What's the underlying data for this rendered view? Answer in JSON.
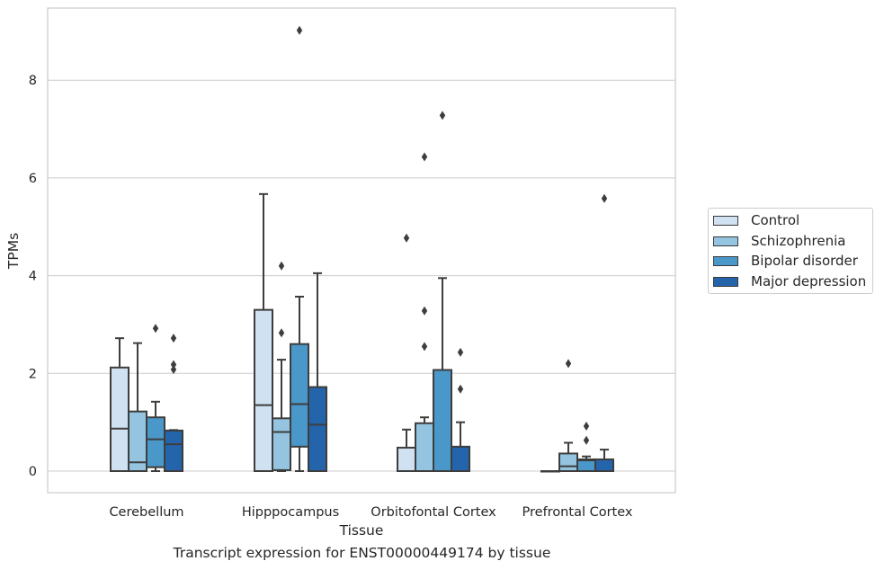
{
  "caption": "Transcript expression for ENST00000449174 by tissue",
  "colors": {
    "Control": "#d0e1f2",
    "Schizophrenia": "#94c4df",
    "Bipolar disorder": "#4a98c9",
    "Major depression": "#2464ab",
    "grid": "#cccccc",
    "box_edge": "#3d3d3d"
  },
  "legend": {
    "placement": "right, outside plot",
    "entries": [
      "Control",
      "Schizophrenia",
      "Bipolar disorder",
      "Major depression"
    ]
  },
  "chart_data": {
    "type": "box",
    "xlabel": "Tissue",
    "ylabel": "TPMs",
    "ylim": [
      -0.45,
      9.6
    ],
    "yticks": [
      0,
      2,
      4,
      6,
      8
    ],
    "grid": "horizontal",
    "categories": [
      "Cerebellum",
      "Hipppocampus",
      "Orbitofontal Cortex",
      "Prefrontal Cortex"
    ],
    "series": [
      {
        "name": "Control",
        "boxes": [
          {
            "whislo": 0,
            "q1": 0,
            "med": 0.87,
            "q3": 2.12,
            "whishi": 2.72,
            "fliers": []
          },
          {
            "whislo": 0,
            "q1": 0,
            "med": 1.35,
            "q3": 3.3,
            "whishi": 5.67,
            "fliers": []
          },
          {
            "whislo": 0,
            "q1": 0,
            "med": 0,
            "q3": 0.48,
            "whishi": 0.85,
            "fliers": [
              4.77
            ]
          },
          {
            "whislo": 0,
            "q1": 0,
            "med": 0,
            "q3": 0,
            "whishi": 0,
            "fliers": []
          }
        ]
      },
      {
        "name": "Schizophrenia",
        "boxes": [
          {
            "whislo": 0,
            "q1": 0,
            "med": 0.18,
            "q3": 1.22,
            "whishi": 2.62,
            "fliers": []
          },
          {
            "whislo": 0,
            "q1": 0.02,
            "med": 0.8,
            "q3": 1.08,
            "whishi": 2.28,
            "fliers": [
              2.83,
              4.2
            ]
          },
          {
            "whislo": 0,
            "q1": 0,
            "med": 0,
            "q3": 0.98,
            "whishi": 1.1,
            "fliers": [
              2.55,
              3.28,
              6.43
            ]
          },
          {
            "whislo": 0,
            "q1": 0,
            "med": 0.1,
            "q3": 0.36,
            "whishi": 0.58,
            "fliers": [
              2.2
            ]
          }
        ]
      },
      {
        "name": "Bipolar disorder",
        "boxes": [
          {
            "whislo": 0,
            "q1": 0.08,
            "med": 0.65,
            "q3": 1.1,
            "whishi": 1.42,
            "fliers": [
              2.92
            ]
          },
          {
            "whislo": 0,
            "q1": 0.5,
            "med": 1.37,
            "q3": 2.6,
            "whishi": 3.57,
            "fliers": [
              9.02
            ]
          },
          {
            "whislo": 0,
            "q1": 0,
            "med": 0,
            "q3": 2.07,
            "whishi": 3.95,
            "fliers": [
              7.28
            ]
          },
          {
            "whislo": 0,
            "q1": 0,
            "med": 0.22,
            "q3": 0.24,
            "whishi": 0.3,
            "fliers": [
              0.63,
              0.92
            ]
          }
        ]
      },
      {
        "name": "Major depression",
        "boxes": [
          {
            "whislo": 0,
            "q1": 0,
            "med": 0.55,
            "q3": 0.83,
            "whishi": 0.84,
            "fliers": [
              2.08,
              2.18,
              2.72
            ]
          },
          {
            "whislo": 0,
            "q1": 0,
            "med": 0.95,
            "q3": 1.72,
            "whishi": 4.05,
            "fliers": []
          },
          {
            "whislo": 0,
            "q1": 0,
            "med": 0,
            "q3": 0.5,
            "whishi": 1.0,
            "fliers": [
              1.68,
              2.43
            ]
          },
          {
            "whislo": 0,
            "q1": 0,
            "med": 0,
            "q3": 0.24,
            "whishi": 0.44,
            "fliers": [
              5.58
            ]
          }
        ]
      }
    ]
  }
}
